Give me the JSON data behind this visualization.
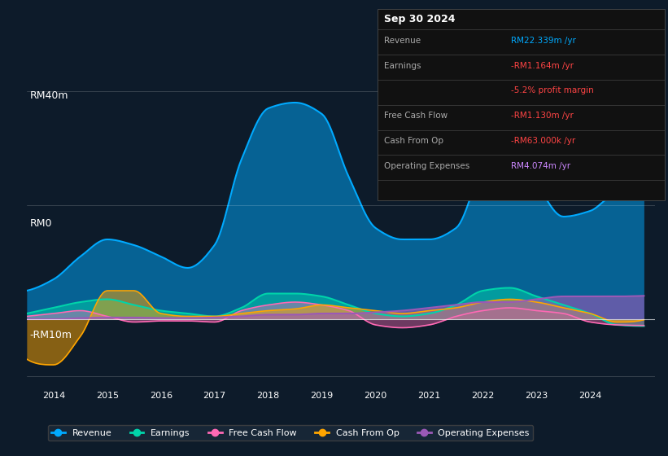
{
  "bg_color": "#0d1b2a",
  "chart_bg": "#0d1b2a",
  "title": "Sep 30 2024",
  "ylabel_rm40": "RM40m",
  "ylabel_rm0": "RM0",
  "ylabel_rm10n": "-RM10m",
  "years": [
    2014,
    2015,
    2016,
    2017,
    2018,
    2019,
    2020,
    2021,
    2022,
    2023,
    2024
  ],
  "revenue_color": "#00aaff",
  "earnings_color": "#00d4aa",
  "fcf_color": "#ff69b4",
  "cashfromop_color": "#ffa500",
  "opex_color": "#9b59b6",
  "info_box": {
    "date": "Sep 30 2024",
    "revenue": "RM22.339m /yr",
    "earnings": "-RM1.164m /yr",
    "profit_margin": "-5.2% profit margin",
    "fcf": "-RM1.130m /yr",
    "cashfromop": "-RM63.000k /yr",
    "opex": "RM4.074m /yr",
    "revenue_color": "#00aaff",
    "earnings_color": "#ff4444",
    "profit_margin_color": "#ff4444",
    "fcf_color": "#ff4444",
    "cashfromop_color": "#ff4444",
    "opex_color": "#cc88ff"
  },
  "legend": [
    {
      "label": "Revenue",
      "color": "#00aaff"
    },
    {
      "label": "Earnings",
      "color": "#00d4aa"
    },
    {
      "label": "Free Cash Flow",
      "color": "#ff69b4"
    },
    {
      "label": "Cash From Op",
      "color": "#ffa500"
    },
    {
      "label": "Operating Expenses",
      "color": "#9b59b6"
    }
  ]
}
